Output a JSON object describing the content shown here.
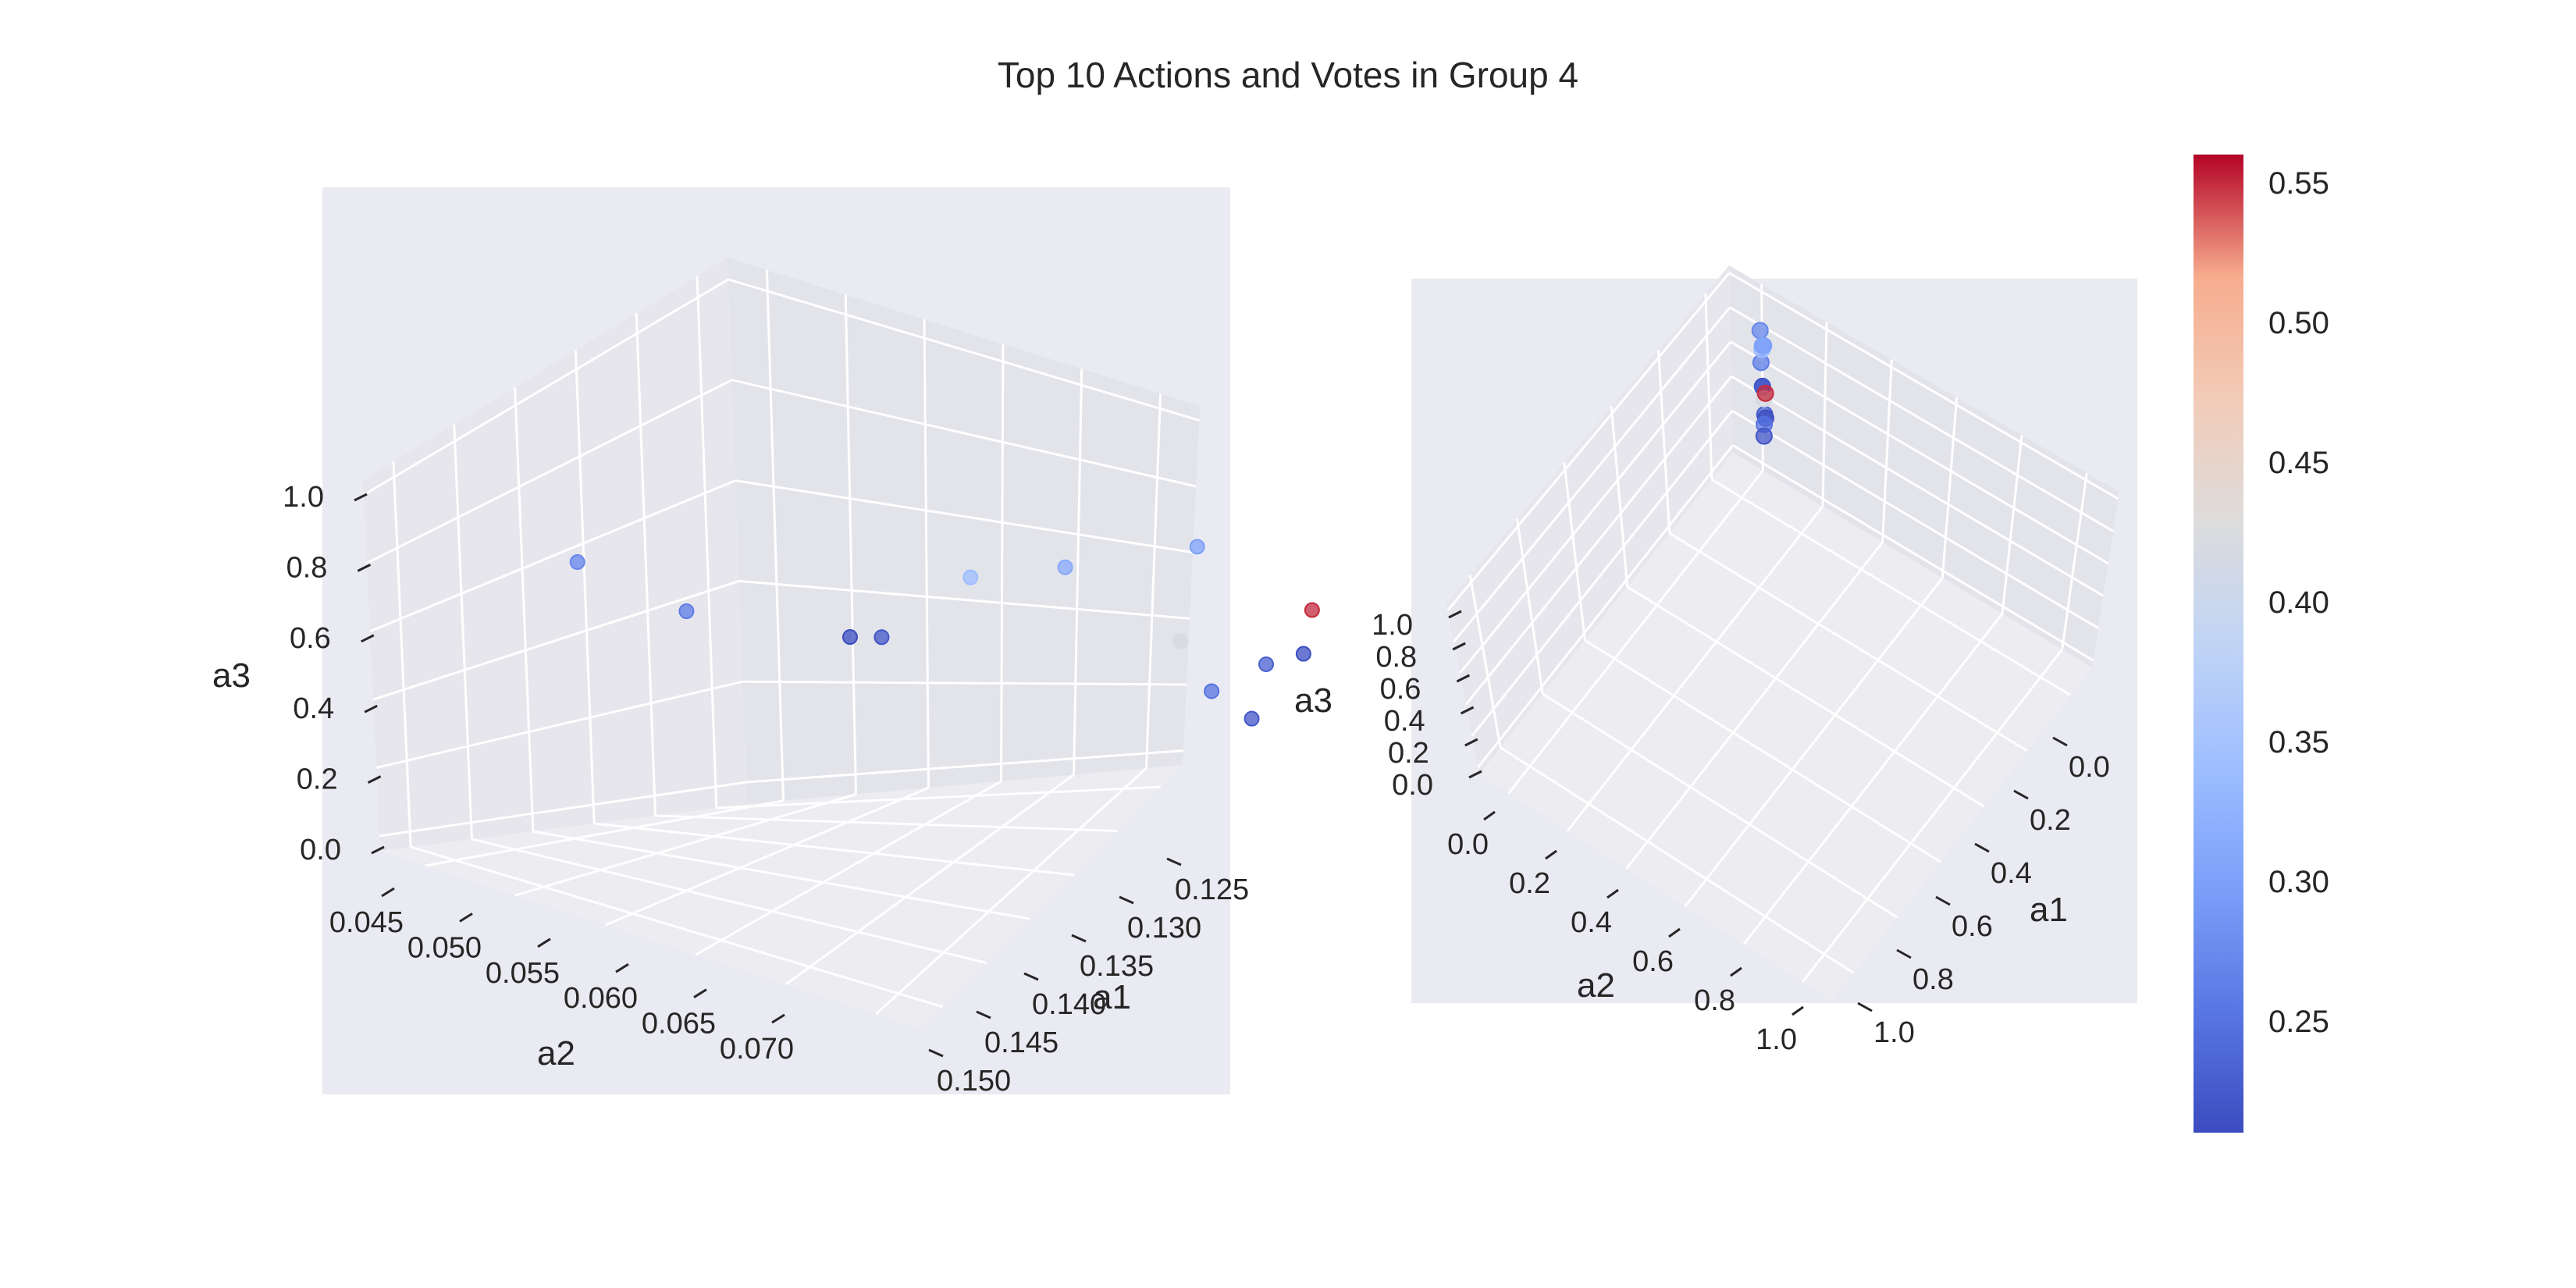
{
  "chart_data": {
    "type": "scatter",
    "title": "Top 10 Actions and Votes in Group 4",
    "colormap": "coolwarm",
    "colorbar": {
      "min": 0.21,
      "max": 0.56,
      "ticks": [
        "0.25",
        "0.30",
        "0.35",
        "0.40",
        "0.45",
        "0.50",
        "0.55"
      ]
    },
    "panels": [
      {
        "name": "zoomed",
        "xlabel": "a1",
        "ylabel": "a2",
        "zlabel": "a3",
        "a1_ticks": [
          "0.125",
          "0.130",
          "0.135",
          "0.140",
          "0.145",
          "0.150"
        ],
        "a2_ticks": [
          "0.045",
          "0.050",
          "0.055",
          "0.060",
          "0.065",
          "0.070"
        ],
        "a3_ticks": [
          "0.0",
          "0.2",
          "0.4",
          "0.6",
          "0.8",
          "1.0"
        ]
      },
      {
        "name": "full-range",
        "xlabel": "a1",
        "ylabel": "a2",
        "zlabel": "a3",
        "a1_ticks": [
          "0.0",
          "0.2",
          "0.4",
          "0.6",
          "0.8",
          "1.0"
        ],
        "a2_ticks": [
          "0.0",
          "0.2",
          "0.4",
          "0.6",
          "0.8",
          "1.0"
        ],
        "a3_ticks": [
          "0.0",
          "0.2",
          "0.4",
          "0.6",
          "0.8",
          "1.0"
        ]
      }
    ],
    "points": [
      {
        "a1": 0.124,
        "a2": 0.054,
        "a3": 0.95,
        "vote": 0.27
      },
      {
        "a1": 0.128,
        "a2": 0.056,
        "a3": 0.78,
        "vote": 0.26
      },
      {
        "a1": 0.134,
        "a2": 0.059,
        "a3": 0.66,
        "vote": 0.21
      },
      {
        "a1": 0.135,
        "a2": 0.06,
        "a3": 0.66,
        "vote": 0.22
      },
      {
        "a1": 0.137,
        "a2": 0.065,
        "a3": 0.88,
        "vote": 0.34
      },
      {
        "a1": 0.14,
        "a2": 0.068,
        "a3": 0.91,
        "vote": 0.31
      },
      {
        "a1": 0.145,
        "a2": 0.07,
        "a3": 0.92,
        "vote": 0.3
      },
      {
        "a1": 0.148,
        "a2": 0.07,
        "a3": 0.54,
        "vote": 0.23
      },
      {
        "a1": 0.15,
        "a2": 0.069,
        "a3": 0.52,
        "vote": 0.21
      },
      {
        "a1": 0.145,
        "a2": 0.068,
        "a3": 0.62,
        "vote": 0.42
      },
      {
        "a1": 0.15,
        "a2": 0.07,
        "a3": 0.66,
        "vote": 0.55
      },
      {
        "a1": 0.146,
        "a2": 0.069,
        "a3": 0.48,
        "vote": 0.25
      },
      {
        "a1": 0.147,
        "a2": 0.071,
        "a3": 0.42,
        "vote": 0.22
      }
    ]
  }
}
